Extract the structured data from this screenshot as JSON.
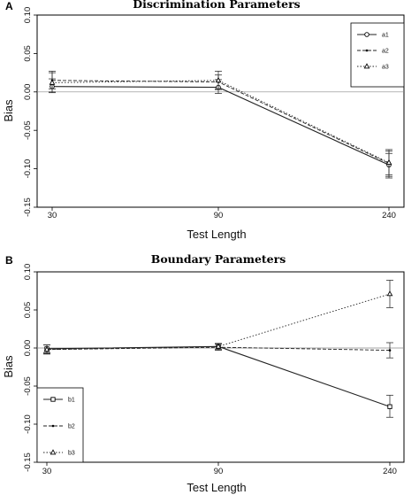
{
  "chart_data": [
    {
      "panel": "A",
      "type": "line",
      "title": "Discrimination Parameters",
      "xlabel": "Test Length",
      "ylabel": "Bias",
      "categories": [
        "30",
        "90",
        "240"
      ],
      "ylim": [
        -0.15,
        0.1
      ],
      "yticks": [
        "0.10",
        "0.05",
        "0.00",
        "-0.05",
        "-0.10",
        "-0.15"
      ],
      "reference_line": 0,
      "legend_placement": "top-right",
      "series": [
        {
          "name": "a1",
          "values": [
            0.007,
            0.006,
            -0.095
          ],
          "lower": [
            -0.001,
            -0.002,
            -0.112
          ],
          "upper": [
            0.017,
            0.016,
            -0.08
          ],
          "dash": "",
          "marker": "circle"
        },
        {
          "name": "a2",
          "values": [
            0.015,
            0.013,
            -0.093
          ],
          "lower": [
            0.004,
            0.003,
            -0.11
          ],
          "upper": [
            0.025,
            0.022,
            -0.077
          ],
          "dash": "4,2",
          "marker": "dot"
        },
        {
          "name": "a3",
          "values": [
            0.012,
            0.015,
            -0.092
          ],
          "lower": [
            0.0,
            0.004,
            -0.108
          ],
          "upper": [
            0.027,
            0.027,
            -0.075
          ],
          "dash": "1.5,2",
          "marker": "triangle"
        }
      ]
    },
    {
      "panel": "B",
      "type": "line",
      "title": "Boundary Parameters",
      "xlabel": "Test Length",
      "ylabel": "Bias",
      "categories": [
        "30",
        "90",
        "240"
      ],
      "ylim": [
        -0.15,
        0.1
      ],
      "yticks": [
        "0.10",
        "0.05",
        "0.00",
        "-0.05",
        "-0.10",
        "-0.15"
      ],
      "reference_line": 0,
      "legend_placement": "bottom-left",
      "series": [
        {
          "name": "b1",
          "values": [
            -0.001,
            0.002,
            -0.077
          ],
          "lower": [
            -0.006,
            -0.002,
            -0.091
          ],
          "upper": [
            0.004,
            0.006,
            -0.062
          ],
          "dash": "",
          "marker": "square"
        },
        {
          "name": "b2",
          "values": [
            -0.002,
            0.001,
            -0.003
          ],
          "lower": [
            -0.008,
            -0.003,
            -0.013
          ],
          "upper": [
            0.004,
            0.005,
            0.007
          ],
          "dash": "4,2",
          "marker": "dot"
        },
        {
          "name": "b3",
          "values": [
            -0.002,
            0.002,
            0.071
          ],
          "lower": [
            -0.007,
            -0.002,
            0.053
          ],
          "upper": [
            0.004,
            0.006,
            0.089
          ],
          "dash": "1.5,2",
          "marker": "triangle"
        }
      ]
    }
  ]
}
